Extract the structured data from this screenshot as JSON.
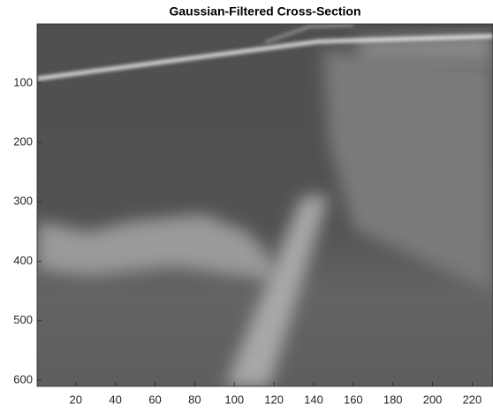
{
  "chart_data": {
    "type": "image",
    "title": "Gaussian-Filtered Cross-Section",
    "xlim": [
      0.5,
      230.5
    ],
    "ylim": [
      0.5,
      610.5
    ],
    "y_reversed": true,
    "xticks": [
      20,
      40,
      60,
      80,
      100,
      120,
      140,
      160,
      180,
      200,
      220
    ],
    "yticks": [
      100,
      200,
      300,
      400,
      500,
      600
    ]
  }
}
